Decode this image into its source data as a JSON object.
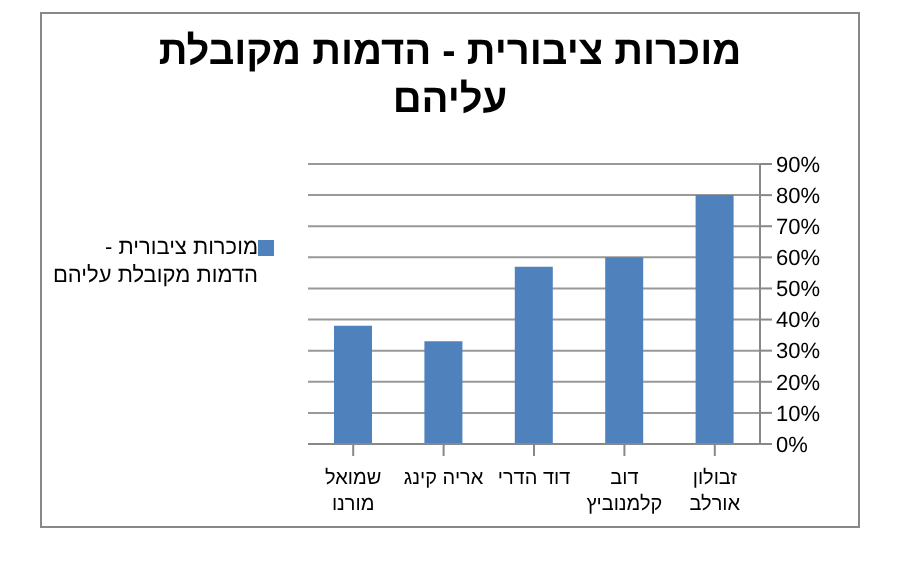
{
  "chart_data": {
    "type": "bar",
    "title": "מוכרות ציבורית - הדמות מקובלת עליהם",
    "categories": [
      "שמואל מורנו",
      "אריה קינג",
      "דוד הדרי",
      "דוב קלמנוביץ",
      "זבולון אורלב"
    ],
    "series": [
      {
        "name": "מוכרות ציבורית - הדמות מקובלת עליהם",
        "color": "#4f81bd",
        "values": [
          38,
          33,
          57,
          60,
          80
        ]
      }
    ],
    "ylim": [
      0,
      90
    ],
    "yticks": [
      {
        "value": 0,
        "label": "0%"
      },
      {
        "value": 10,
        "label": "10%"
      },
      {
        "value": 20,
        "label": "20%"
      },
      {
        "value": 30,
        "label": "30%"
      },
      {
        "value": 40,
        "label": "40%"
      },
      {
        "value": 50,
        "label": "50%"
      },
      {
        "value": 60,
        "label": "60%"
      },
      {
        "value": 70,
        "label": "70%"
      },
      {
        "value": 80,
        "label": "80%"
      },
      {
        "value": 90,
        "label": "90%"
      }
    ],
    "grid": "y",
    "legend": "left"
  }
}
